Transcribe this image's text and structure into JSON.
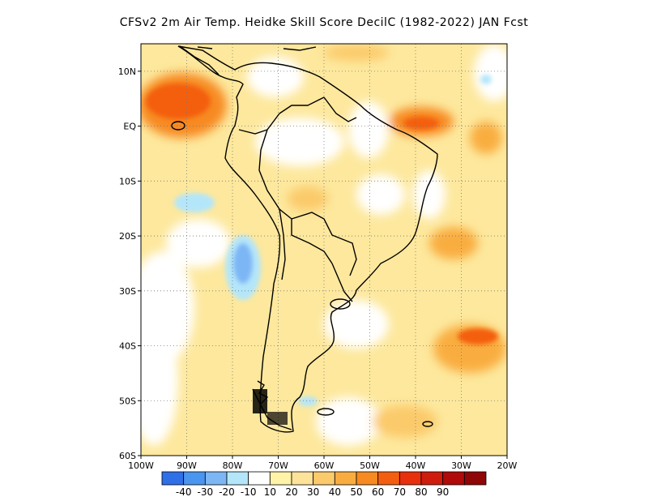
{
  "title": "CFSv2  2m Air Temp. Heidke Skill Score DecilC (1982-2022) JAN Fcst",
  "map": {
    "lon_range": [
      -100,
      -20
    ],
    "lat_range": [
      -60,
      15
    ],
    "lat_ticks": [
      {
        "value": 10,
        "label": "10N"
      },
      {
        "value": 0,
        "label": "EQ"
      },
      {
        "value": -10,
        "label": "10S"
      },
      {
        "value": -20,
        "label": "20S"
      },
      {
        "value": -30,
        "label": "30S"
      },
      {
        "value": -40,
        "label": "40S"
      },
      {
        "value": -50,
        "label": "50S"
      },
      {
        "value": -60,
        "label": "60S"
      }
    ],
    "lon_ticks": [
      {
        "value": -100,
        "label": "100W"
      },
      {
        "value": -90,
        "label": "90W"
      },
      {
        "value": -80,
        "label": "80W"
      },
      {
        "value": -70,
        "label": "70W"
      },
      {
        "value": -60,
        "label": "60W"
      },
      {
        "value": -50,
        "label": "50W"
      },
      {
        "value": -40,
        "label": "40W"
      },
      {
        "value": -30,
        "label": "30W"
      },
      {
        "value": -20,
        "label": "20W"
      }
    ],
    "grid": "dotted",
    "coastline_color": "#000000"
  },
  "colorbar": {
    "colors": [
      "#2f6fe8",
      "#4a95f0",
      "#7db6f5",
      "#b4e6fa",
      "#ffffff",
      "#fff3a8",
      "#fde29a",
      "#fbca6a",
      "#f9ad40",
      "#f78a20",
      "#f45e10",
      "#e8300c",
      "#d01c0c",
      "#b00a0a",
      "#900606"
    ],
    "labels": [
      "-40",
      "-30",
      "-20",
      "-10",
      "10",
      "20",
      "30",
      "40",
      "50",
      "60",
      "70",
      "80",
      "90"
    ]
  },
  "features": {
    "warm_regions": [
      {
        "name": "eastern pacific near equator",
        "lon": -92,
        "lat": 3,
        "level": 60
      },
      {
        "name": "south atlantic",
        "lon": -35,
        "lat": -38,
        "level": 50
      },
      {
        "name": "tropical atlantic",
        "lon": -40,
        "lat": 0,
        "level": 50
      }
    ],
    "cool_regions": [
      {
        "name": "southeast pacific",
        "lon": -80,
        "lat": -25,
        "level": -30
      },
      {
        "name": "pacific off peru",
        "lon": -88,
        "lat": -15,
        "level": -10
      }
    ]
  }
}
